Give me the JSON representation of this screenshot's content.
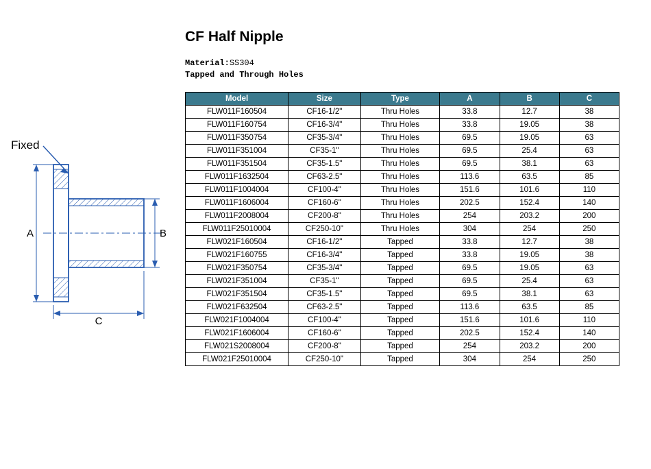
{
  "title": "CF Half Nipple",
  "material_label": "Material:",
  "material_value": "SS304",
  "subtitle": "Tapped and Through Holes",
  "diagram": {
    "fixed_label": "Fixed",
    "dim_a": "A",
    "dim_b": "B",
    "dim_c": "C",
    "stroke": "#2a5db0",
    "hatch": "#2a5db0",
    "text": "#000000"
  },
  "table": {
    "header_bg": "#3b7a8e",
    "header_fg": "#ffffff",
    "border": "#000000",
    "columns": [
      "Model",
      "Size",
      "Type",
      "A",
      "B",
      "C"
    ],
    "rows": [
      [
        "FLW011F160504",
        "CF16-1/2\"",
        "Thru Holes",
        "33.8",
        "12.7",
        "38"
      ],
      [
        "FLW011F160754",
        "CF16-3/4\"",
        "Thru Holes",
        "33.8",
        "19.05",
        "38"
      ],
      [
        "FLW011F350754",
        "CF35-3/4\"",
        "Thru Holes",
        "69.5",
        "19.05",
        "63"
      ],
      [
        "FLW011F351004",
        "CF35-1\"",
        "Thru Holes",
        "69.5",
        "25.4",
        "63"
      ],
      [
        "FLW011F351504",
        "CF35-1.5\"",
        "Thru Holes",
        "69.5",
        "38.1",
        "63"
      ],
      [
        "FLW011F1632504",
        "CF63-2.5\"",
        "Thru Holes",
        "113.6",
        "63.5",
        "85"
      ],
      [
        "FLW011F1004004",
        "CF100-4\"",
        "Thru Holes",
        "151.6",
        "101.6",
        "110"
      ],
      [
        "FLW011F1606004",
        "CF160-6\"",
        "Thru Holes",
        "202.5",
        "152.4",
        "140"
      ],
      [
        "FLW011F2008004",
        "CF200-8\"",
        "Thru Holes",
        "254",
        "203.2",
        "200"
      ],
      [
        "FLW011F25010004",
        "CF250-10\"",
        "Thru Holes",
        "304",
        "254",
        "250"
      ],
      [
        "FLW021F160504",
        "CF16-1/2\"",
        "Tapped",
        "33.8",
        "12.7",
        "38"
      ],
      [
        "FLW021F160755",
        "CF16-3/4\"",
        "Tapped",
        "33.8",
        "19.05",
        "38"
      ],
      [
        "FLW021F350754",
        "CF35-3/4\"",
        "Tapped",
        "69.5",
        "19.05",
        "63"
      ],
      [
        "FLW021F351004",
        "CF35-1\"",
        "Tapped",
        "69.5",
        "25.4",
        "63"
      ],
      [
        "FLW021F351504",
        "CF35-1.5\"",
        "Tapped",
        "69.5",
        "38.1",
        "63"
      ],
      [
        "FLW021F632504",
        "CF63-2.5\"",
        "Tapped",
        "113.6",
        "63.5",
        "85"
      ],
      [
        "FLW021F1004004",
        "CF100-4\"",
        "Tapped",
        "151.6",
        "101.6",
        "110"
      ],
      [
        "FLW021F1606004",
        "CF160-6\"",
        "Tapped",
        "202.5",
        "152.4",
        "140"
      ],
      [
        "FLW021S2008004",
        "CF200-8\"",
        "Tapped",
        "254",
        "203.2",
        "200"
      ],
      [
        "FLW021F25010004",
        "CF250-10\"",
        "Tapped",
        "304",
        "254",
        "250"
      ]
    ]
  }
}
